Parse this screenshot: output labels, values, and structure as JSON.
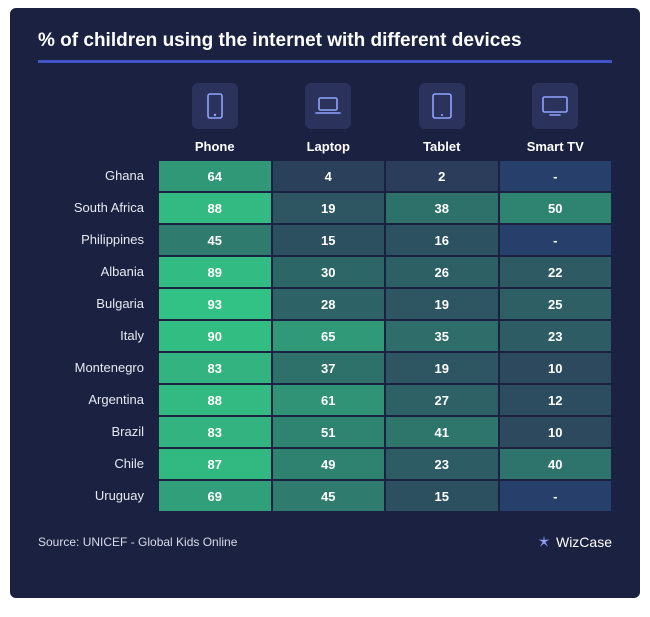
{
  "title": "% of children using the internet with different devices",
  "background_color": "#1b2140",
  "title_underline_color": "#3f55c9",
  "cell_border_color": "#1b2140",
  "icon_box_bg": "#2b335c",
  "icon_stroke": "#8fa3ff",
  "columns": [
    {
      "key": "phone",
      "label": "Phone",
      "icon": "phone"
    },
    {
      "key": "laptop",
      "label": "Laptop",
      "icon": "laptop"
    },
    {
      "key": "tablet",
      "label": "Tablet",
      "icon": "tablet"
    },
    {
      "key": "smarttv",
      "label": "Smart TV",
      "icon": "tv"
    }
  ],
  "rows": [
    {
      "label": "Ghana",
      "values": [
        64,
        4,
        2,
        null
      ]
    },
    {
      "label": "South Africa",
      "values": [
        88,
        19,
        38,
        50
      ]
    },
    {
      "label": "Philippines",
      "values": [
        45,
        15,
        16,
        null
      ]
    },
    {
      "label": "Albania",
      "values": [
        89,
        30,
        26,
        22
      ]
    },
    {
      "label": "Bulgaria",
      "values": [
        93,
        28,
        19,
        25
      ]
    },
    {
      "label": "Italy",
      "values": [
        90,
        65,
        35,
        23
      ]
    },
    {
      "label": "Montenegro",
      "values": [
        83,
        37,
        19,
        10
      ]
    },
    {
      "label": "Argentina",
      "values": [
        88,
        61,
        27,
        12
      ]
    },
    {
      "label": "Brazil",
      "values": [
        83,
        51,
        41,
        10
      ]
    },
    {
      "label": "Chile",
      "values": [
        87,
        49,
        23,
        40
      ]
    },
    {
      "label": "Uruguay",
      "values": [
        69,
        45,
        15,
        null
      ]
    }
  ],
  "color_scale": {
    "min_value": 0,
    "max_value": 100,
    "low_color": "#2b3a59",
    "high_color": "#33cc88",
    "null_color": "#26406b",
    "null_display": "-"
  },
  "footer": {
    "source": "Source: UNICEF - Global Kids Online",
    "brand": "WizCase"
  }
}
